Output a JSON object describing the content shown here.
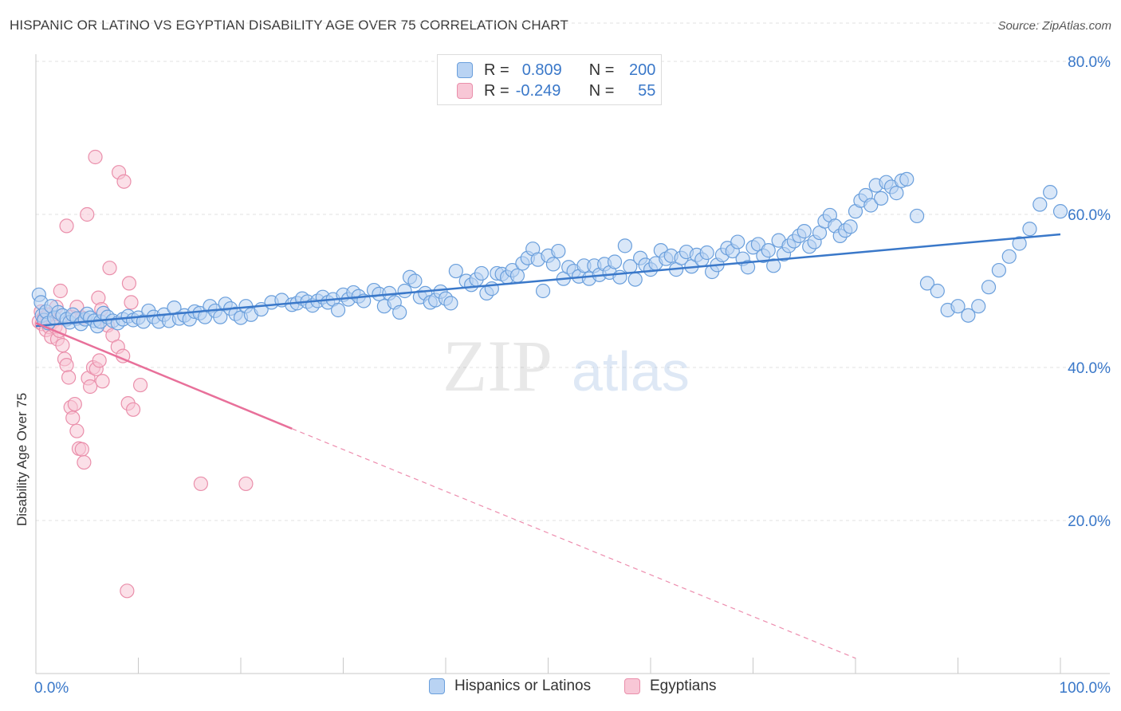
{
  "title": "HISPANIC OR LATINO VS EGYPTIAN DISABILITY AGE OVER 75 CORRELATION CHART",
  "source": "Source: ZipAtlas.com",
  "watermark": {
    "zip": "ZIP",
    "atlas": "atlas"
  },
  "legend_top": {
    "rows": [
      {
        "r_label": "R =",
        "r_value": "0.809",
        "n_label": "N =",
        "n_value": "200"
      },
      {
        "r_label": "R =",
        "r_value": "-0.249",
        "n_label": "N =",
        "n_value": "55"
      }
    ]
  },
  "legend_bottom": [
    "Hispanics or Latinos",
    "Egyptians"
  ],
  "colors": {
    "blue_fill": "#b9d3f3",
    "blue_stroke": "#6a9fdc",
    "blue_line": "#3a78c9",
    "pink_fill": "#f8c7d6",
    "pink_stroke": "#ea8fab",
    "pink_line": "#e8709a",
    "tick_text": "#3a78c9"
  },
  "chart_data": {
    "type": "scatter",
    "title": "HISPANIC OR LATINO VS EGYPTIAN DISABILITY AGE OVER 75 CORRELATION CHART",
    "xlabel": "",
    "ylabel": "Disability Age Over 75",
    "xlim": [
      0,
      100
    ],
    "ylim": [
      0,
      85
    ],
    "x_tick_labels": [
      "0.0%",
      "100.0%"
    ],
    "y_ticks": [
      20,
      40,
      60,
      80
    ],
    "y_tick_labels": [
      "20.0%",
      "40.0%",
      "60.0%",
      "80.0%"
    ],
    "grid": true,
    "series": [
      {
        "name": "Hispanics or Latinos",
        "R": 0.809,
        "N": 200,
        "trend": {
          "x": [
            0,
            100
          ],
          "y": [
            45.4,
            57.4
          ],
          "style": "solid"
        },
        "points": [
          [
            0.3,
            49.5
          ],
          [
            0.5,
            48.5
          ],
          [
            0.6,
            46.8
          ],
          [
            0.8,
            46.2
          ],
          [
            1.0,
            47.3
          ],
          [
            1.2,
            45.8
          ],
          [
            1.5,
            48.0
          ],
          [
            1.8,
            46.5
          ],
          [
            2.2,
            47.2
          ],
          [
            2.6,
            46.8
          ],
          [
            3.0,
            46.3
          ],
          [
            3.3,
            45.9
          ],
          [
            3.6,
            46.9
          ],
          [
            4.0,
            46.4
          ],
          [
            4.4,
            45.7
          ],
          [
            4.8,
            46.3
          ],
          [
            5.0,
            47.0
          ],
          [
            5.3,
            46.5
          ],
          [
            5.7,
            46.1
          ],
          [
            6.0,
            45.4
          ],
          [
            6.3,
            46.0
          ],
          [
            6.6,
            47.1
          ],
          [
            7.0,
            46.6
          ],
          [
            7.5,
            46.1
          ],
          [
            8.0,
            45.8
          ],
          [
            8.5,
            46.3
          ],
          [
            9.0,
            46.7
          ],
          [
            9.5,
            46.2
          ],
          [
            10.0,
            46.5
          ],
          [
            10.5,
            46.0
          ],
          [
            11.0,
            47.4
          ],
          [
            11.5,
            46.6
          ],
          [
            12.0,
            46.0
          ],
          [
            12.5,
            46.9
          ],
          [
            13.0,
            46.1
          ],
          [
            13.5,
            47.8
          ],
          [
            14.0,
            46.4
          ],
          [
            14.5,
            46.8
          ],
          [
            15.0,
            46.3
          ],
          [
            15.5,
            47.3
          ],
          [
            16.0,
            47.1
          ],
          [
            16.5,
            46.6
          ],
          [
            17.0,
            48.0
          ],
          [
            17.5,
            47.4
          ],
          [
            18.0,
            46.6
          ],
          [
            18.5,
            48.3
          ],
          [
            19.0,
            47.7
          ],
          [
            19.5,
            47.0
          ],
          [
            20.0,
            46.5
          ],
          [
            20.5,
            48.0
          ],
          [
            21.0,
            46.9
          ],
          [
            22.0,
            47.6
          ],
          [
            23.0,
            48.5
          ],
          [
            24.0,
            48.8
          ],
          [
            25.0,
            48.2
          ],
          [
            25.5,
            48.4
          ],
          [
            26.0,
            49.0
          ],
          [
            26.5,
            48.6
          ],
          [
            27.0,
            48.1
          ],
          [
            27.5,
            48.7
          ],
          [
            28.0,
            49.2
          ],
          [
            28.5,
            48.5
          ],
          [
            29.0,
            48.9
          ],
          [
            29.5,
            47.5
          ],
          [
            30.0,
            49.5
          ],
          [
            30.5,
            48.9
          ],
          [
            31.0,
            49.8
          ],
          [
            31.5,
            49.3
          ],
          [
            32.0,
            48.7
          ],
          [
            33.0,
            50.1
          ],
          [
            33.5,
            49.6
          ],
          [
            34.0,
            48.0
          ],
          [
            34.5,
            49.7
          ],
          [
            35.0,
            48.5
          ],
          [
            35.5,
            47.2
          ],
          [
            36.0,
            50.0
          ],
          [
            36.5,
            51.8
          ],
          [
            37.0,
            51.3
          ],
          [
            37.5,
            49.2
          ],
          [
            38.0,
            49.7
          ],
          [
            38.5,
            48.5
          ],
          [
            39.0,
            48.8
          ],
          [
            39.5,
            49.9
          ],
          [
            40.0,
            49.0
          ],
          [
            40.5,
            48.4
          ],
          [
            41.0,
            52.6
          ],
          [
            42.0,
            51.3
          ],
          [
            42.5,
            50.8
          ],
          [
            43.0,
            51.5
          ],
          [
            43.5,
            52.3
          ],
          [
            44.0,
            49.7
          ],
          [
            44.5,
            50.3
          ],
          [
            45.0,
            52.3
          ],
          [
            45.5,
            52.2
          ],
          [
            46.0,
            51.8
          ],
          [
            46.5,
            52.7
          ],
          [
            47.0,
            52.0
          ],
          [
            47.5,
            53.6
          ],
          [
            48.0,
            54.3
          ],
          [
            48.5,
            55.5
          ],
          [
            49.0,
            54.1
          ],
          [
            49.5,
            50.0
          ],
          [
            50.0,
            54.6
          ],
          [
            50.5,
            53.5
          ],
          [
            51.0,
            55.2
          ],
          [
            51.5,
            51.6
          ],
          [
            52.0,
            53.1
          ],
          [
            52.5,
            52.6
          ],
          [
            53.0,
            51.9
          ],
          [
            53.5,
            53.3
          ],
          [
            54.0,
            51.6
          ],
          [
            54.5,
            53.3
          ],
          [
            55.0,
            52.1
          ],
          [
            55.5,
            53.5
          ],
          [
            56.0,
            52.4
          ],
          [
            56.5,
            53.8
          ],
          [
            57.0,
            51.8
          ],
          [
            57.5,
            55.9
          ],
          [
            58.0,
            53.2
          ],
          [
            58.5,
            51.5
          ],
          [
            59.0,
            54.3
          ],
          [
            59.5,
            53.4
          ],
          [
            60.0,
            52.8
          ],
          [
            60.5,
            53.6
          ],
          [
            61.0,
            55.3
          ],
          [
            61.5,
            54.2
          ],
          [
            62.0,
            54.6
          ],
          [
            62.5,
            52.8
          ],
          [
            63.0,
            54.3
          ],
          [
            63.5,
            55.1
          ],
          [
            64.0,
            53.2
          ],
          [
            64.5,
            54.7
          ],
          [
            65.0,
            54.1
          ],
          [
            65.5,
            55.0
          ],
          [
            66.0,
            52.5
          ],
          [
            66.5,
            53.4
          ],
          [
            67.0,
            54.7
          ],
          [
            67.5,
            55.6
          ],
          [
            68.0,
            55.2
          ],
          [
            68.5,
            56.4
          ],
          [
            69.0,
            54.2
          ],
          [
            69.5,
            53.1
          ],
          [
            70.0,
            55.7
          ],
          [
            70.5,
            56.1
          ],
          [
            71.0,
            54.6
          ],
          [
            71.5,
            55.3
          ],
          [
            72.0,
            53.3
          ],
          [
            72.5,
            56.6
          ],
          [
            73.0,
            54.8
          ],
          [
            73.5,
            55.9
          ],
          [
            74.0,
            56.5
          ],
          [
            74.5,
            57.2
          ],
          [
            75.0,
            57.8
          ],
          [
            75.5,
            55.8
          ],
          [
            76.0,
            56.4
          ],
          [
            76.5,
            57.6
          ],
          [
            77.0,
            59.1
          ],
          [
            77.5,
            59.9
          ],
          [
            78.0,
            58.5
          ],
          [
            78.5,
            57.2
          ],
          [
            79.0,
            57.9
          ],
          [
            79.5,
            58.4
          ],
          [
            80.0,
            60.4
          ],
          [
            80.5,
            61.8
          ],
          [
            81.0,
            62.5
          ],
          [
            81.5,
            61.2
          ],
          [
            82.0,
            63.8
          ],
          [
            82.5,
            62.1
          ],
          [
            83.0,
            64.2
          ],
          [
            83.5,
            63.6
          ],
          [
            84.0,
            62.8
          ],
          [
            84.5,
            64.4
          ],
          [
            85.0,
            64.6
          ],
          [
            86.0,
            59.8
          ],
          [
            87.0,
            51.0
          ],
          [
            88.0,
            50.0
          ],
          [
            89.0,
            47.5
          ],
          [
            90.0,
            48.0
          ],
          [
            91.0,
            46.8
          ],
          [
            92.0,
            48.0
          ],
          [
            93.0,
            50.5
          ],
          [
            94.0,
            52.7
          ],
          [
            95.0,
            54.5
          ],
          [
            96.0,
            56.2
          ],
          [
            97.0,
            58.1
          ],
          [
            98.0,
            61.3
          ],
          [
            99.0,
            62.9
          ],
          [
            100.0,
            60.4
          ]
        ]
      },
      {
        "name": "Egyptians",
        "R": -0.249,
        "N": 55,
        "trend": {
          "x": [
            0,
            25
          ],
          "y": [
            45.8,
            32.0
          ],
          "style": "solid",
          "dashed_extension_to": [
            80,
            2
          ]
        },
        "points": [
          [
            0.3,
            46.0
          ],
          [
            0.5,
            47.3
          ],
          [
            0.6,
            45.7
          ],
          [
            0.8,
            46.5
          ],
          [
            1.0,
            44.9
          ],
          [
            1.1,
            46.1
          ],
          [
            1.3,
            45.3
          ],
          [
            1.5,
            44.0
          ],
          [
            1.7,
            46.0
          ],
          [
            1.9,
            45.3
          ],
          [
            2.1,
            43.7
          ],
          [
            2.3,
            44.8
          ],
          [
            2.6,
            42.9
          ],
          [
            2.8,
            41.1
          ],
          [
            3.0,
            40.3
          ],
          [
            3.2,
            38.7
          ],
          [
            3.4,
            34.8
          ],
          [
            3.6,
            33.4
          ],
          [
            3.8,
            35.2
          ],
          [
            4.0,
            31.7
          ],
          [
            4.2,
            29.4
          ],
          [
            4.5,
            29.3
          ],
          [
            4.7,
            27.6
          ],
          [
            5.1,
            38.6
          ],
          [
            5.3,
            37.5
          ],
          [
            5.6,
            40.0
          ],
          [
            5.9,
            39.8
          ],
          [
            6.2,
            40.9
          ],
          [
            6.5,
            38.2
          ],
          [
            7.0,
            45.5
          ],
          [
            7.5,
            44.2
          ],
          [
            8.0,
            42.7
          ],
          [
            8.5,
            41.5
          ],
          [
            9.0,
            35.3
          ],
          [
            9.5,
            34.5
          ],
          [
            2.0,
            47.9
          ],
          [
            2.4,
            50.0
          ],
          [
            3.0,
            58.5
          ],
          [
            3.5,
            46.6
          ],
          [
            4.0,
            47.9
          ],
          [
            4.5,
            46.5
          ],
          [
            5.0,
            60.0
          ],
          [
            5.8,
            67.5
          ],
          [
            6.1,
            49.1
          ],
          [
            6.4,
            47.6
          ],
          [
            7.2,
            53.0
          ],
          [
            8.1,
            65.5
          ],
          [
            8.6,
            64.3
          ],
          [
            9.1,
            51.0
          ],
          [
            9.3,
            48.5
          ],
          [
            10.2,
            37.7
          ],
          [
            16.1,
            24.8
          ],
          [
            20.5,
            24.8
          ],
          [
            8.9,
            10.8
          ],
          [
            1.2,
            46.9
          ]
        ]
      }
    ]
  }
}
